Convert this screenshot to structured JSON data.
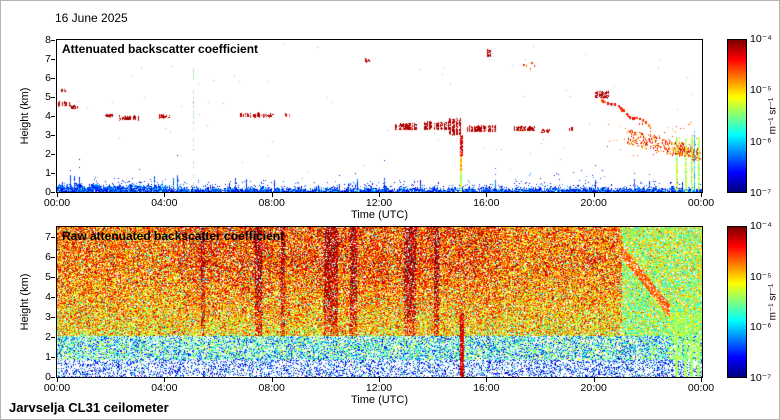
{
  "page": {
    "date_label": "16 June 2025",
    "instrument_label": "Jarvselja CL31 ceilometer",
    "background_color": "#ffffff"
  },
  "chart_data": [
    {
      "type": "heatmap",
      "title": "Attenuated backscatter coefficient",
      "xlabel": "Time (UTC)",
      "ylabel": "Height (km)",
      "x_ticks": [
        "00:00",
        "04:00",
        "08:00",
        "12:00",
        "16:00",
        "20:00",
        "00:00"
      ],
      "x_range_hours": [
        0,
        24
      ],
      "y_ticks": [
        0,
        1,
        2,
        3,
        4,
        5,
        6,
        7,
        8
      ],
      "y_range_km": [
        0,
        8
      ],
      "colorbar": {
        "ticks": [
          "10⁻⁴",
          "10⁻⁵",
          "10⁻⁶",
          "10⁻⁷"
        ],
        "unit": "m⁻¹ sr⁻¹",
        "scale": "log",
        "min": 1e-07,
        "max": 0.0001,
        "colormap": "jet"
      },
      "features": {
        "boundary_layer": {
          "typical_height_km": 0.3,
          "max_height_km": 0.5
        },
        "cloud_segments": [
          [
            0.05,
            0.45,
            4.55,
            4.75
          ],
          [
            0.5,
            0.75,
            4.4,
            4.55
          ],
          [
            0.15,
            0.3,
            5.3,
            5.45
          ],
          [
            1.8,
            2.05,
            3.95,
            4.1
          ],
          [
            2.3,
            3.0,
            3.8,
            4.0
          ],
          [
            3.8,
            4.15,
            3.9,
            4.05
          ],
          [
            6.8,
            7.5,
            3.95,
            4.15
          ],
          [
            7.6,
            8.05,
            3.95,
            4.1
          ],
          [
            8.5,
            8.65,
            4.0,
            4.1
          ],
          [
            11.45,
            11.6,
            6.85,
            7.0
          ],
          [
            12.55,
            13.35,
            3.3,
            3.6
          ],
          [
            13.6,
            14.55,
            3.3,
            3.7
          ],
          [
            14.6,
            15.0,
            3.0,
            3.85
          ],
          [
            15.25,
            16.3,
            3.2,
            3.5
          ],
          [
            16.0,
            16.1,
            7.15,
            7.5
          ],
          [
            17.0,
            17.75,
            3.25,
            3.45
          ],
          [
            18.0,
            18.3,
            3.15,
            3.3
          ],
          [
            19.0,
            19.2,
            3.25,
            3.4
          ],
          [
            20.0,
            20.5,
            4.95,
            5.3
          ]
        ],
        "orange_segments": [
          [
            17.35,
            17.8,
            6.5,
            7.0
          ],
          [
            20.9,
            21.15,
            4.25,
            4.45
          ],
          [
            21.6,
            21.8,
            3.6,
            3.75
          ]
        ],
        "orange_arc": {
          "t0": 20.15,
          "t1": 22.1,
          "h0": 5.05,
          "h1": 3.45
        },
        "aerosol_bands": [
          {
            "t0": 21.2,
            "t1": 23.9,
            "h0": 2.95,
            "h1": 2.05,
            "thick": 0.8
          },
          {
            "t0": 23.0,
            "t1": 23.95,
            "h0": 2.3,
            "h1": 2.0,
            "thick": 0.5
          }
        ],
        "orange_scatter": {
          "t0": 20.4,
          "t1": 23.9,
          "h0": 1.9,
          "h1": 3.7
        },
        "rain_column": {
          "t": 15.05,
          "h_top": 3.0
        },
        "dotted_column": {
          "t": 5.05,
          "h_top": 6.6
        },
        "green_columns": [
          23.05,
          23.35,
          23.6,
          23.85
        ],
        "cyan_column": {
          "t": 23.7,
          "h_top": 3.2
        }
      }
    },
    {
      "type": "heatmap",
      "title": "Raw attenuated backscatter coefficient",
      "xlabel": "Time (UTC)",
      "ylabel": "Height (km)",
      "x_ticks": [
        "00:00",
        "04:00",
        "08:00",
        "12:00",
        "16:00",
        "20:00",
        "00:00"
      ],
      "x_range_hours": [
        0,
        24
      ],
      "y_ticks": [
        0,
        1,
        2,
        3,
        4,
        5,
        6,
        7
      ],
      "y_range_km": [
        0,
        7.5
      ],
      "colorbar": {
        "ticks": [
          "10⁻⁴",
          "10⁻⁵",
          "10⁻⁶",
          "10⁻⁷"
        ],
        "unit": "m⁻¹ sr⁻¹",
        "scale": "log",
        "min": 1e-07,
        "max": 0.0001,
        "colormap": "jet"
      },
      "features": {
        "red_streaks": [
          [
            5.35,
            5.5
          ],
          [
            7.35,
            7.6
          ],
          [
            8.3,
            8.45
          ],
          [
            9.9,
            10.45
          ],
          [
            10.9,
            11.15
          ],
          [
            12.9,
            13.35
          ],
          [
            14.0,
            14.2
          ]
        ],
        "rain_column": {
          "t": 15.05,
          "h_top": 3.2
        },
        "diagonal_streak": {
          "t0": 21.0,
          "t1": 22.8,
          "h0": 6.3,
          "h1": 3.3
        },
        "green_columns": [
          23.05,
          23.35,
          23.6,
          23.85
        ],
        "quiet_after_hour": 21
      }
    }
  ]
}
